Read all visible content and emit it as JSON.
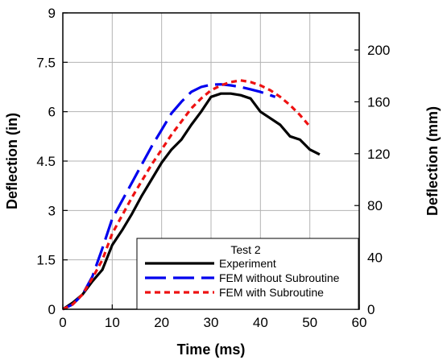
{
  "chart_data": {
    "type": "line",
    "title": "",
    "xlabel": "Time (ms)",
    "ylabel": "Deflection (in)",
    "ylabel_right": "Deflection (mm)",
    "xlim": [
      0,
      60
    ],
    "ylim": [
      0,
      9
    ],
    "ylim_right": [
      0,
      228.6
    ],
    "x_ticks": [
      0,
      10,
      20,
      30,
      40,
      50,
      60
    ],
    "y_ticks": [
      0,
      1.5,
      3,
      4.5,
      6,
      7.5,
      9
    ],
    "y_tick_labels": [
      "0",
      "1.5",
      "3",
      "4.5",
      "6",
      "7.5",
      "9"
    ],
    "y_ticks_right": [
      0,
      40,
      80,
      120,
      160,
      200
    ],
    "grid": true,
    "legend": {
      "title": "Test 2",
      "position": "bottom-right"
    },
    "series": [
      {
        "name": "Experiment",
        "color": "#000000",
        "style": "solid",
        "x": [
          0,
          2,
          4,
          6,
          8,
          10,
          12,
          14,
          16,
          18,
          20,
          22,
          24,
          26,
          28,
          30,
          32,
          34,
          36,
          38,
          40,
          42,
          44,
          46,
          48,
          50,
          52
        ],
        "y": [
          0,
          0.2,
          0.45,
          0.85,
          1.2,
          1.95,
          2.4,
          2.9,
          3.45,
          3.95,
          4.45,
          4.85,
          5.15,
          5.6,
          6.0,
          6.45,
          6.55,
          6.55,
          6.5,
          6.4,
          6.0,
          5.8,
          5.6,
          5.25,
          5.15,
          4.85,
          4.7
        ]
      },
      {
        "name": "FEM without Subroutine",
        "color": "#0000ee",
        "style": "long-dash",
        "x": [
          0,
          2,
          4,
          6,
          8,
          10,
          12,
          14,
          16,
          18,
          20,
          22,
          24,
          26,
          28,
          30,
          32,
          34,
          36,
          38,
          40,
          42,
          43
        ],
        "y": [
          0,
          0.15,
          0.45,
          1.0,
          1.85,
          2.75,
          3.3,
          3.85,
          4.4,
          4.95,
          5.45,
          5.95,
          6.3,
          6.6,
          6.75,
          6.82,
          6.83,
          6.8,
          6.75,
          6.68,
          6.6,
          6.5,
          6.45
        ]
      },
      {
        "name": "FEM with Subroutine",
        "color": "#ee1111",
        "style": "short-dash",
        "x": [
          0,
          2,
          4,
          6,
          8,
          10,
          12,
          14,
          16,
          18,
          20,
          22,
          24,
          26,
          28,
          30,
          32,
          34,
          36,
          38,
          40,
          42,
          44,
          46,
          48,
          50
        ],
        "y": [
          0,
          0.15,
          0.45,
          0.95,
          1.5,
          2.3,
          2.85,
          3.4,
          3.9,
          4.4,
          4.85,
          5.3,
          5.7,
          6.1,
          6.4,
          6.65,
          6.8,
          6.9,
          6.95,
          6.9,
          6.8,
          6.65,
          6.45,
          6.2,
          5.9,
          5.55
        ]
      }
    ]
  }
}
